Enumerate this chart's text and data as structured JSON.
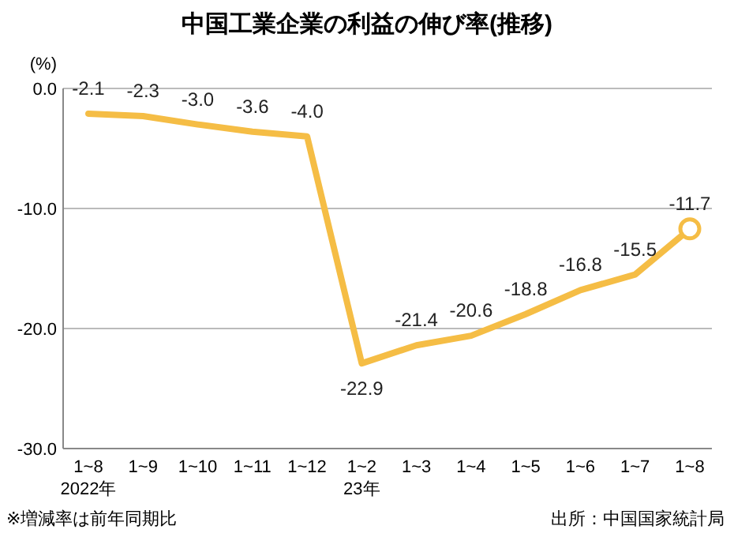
{
  "chart_data": {
    "type": "line",
    "title": "中国工業企業の利益の伸び率(推移)",
    "ylabel": "(%)",
    "categories": [
      "1~8\n2022年",
      "1~9",
      "1~10",
      "1~11",
      "1~12",
      "1~2\n23年",
      "1~3",
      "1~4",
      "1~5",
      "1~6",
      "1~7",
      "1~8"
    ],
    "series": [
      {
        "color": "#f5bd45",
        "values": [
          -2.1,
          -2.3,
          -3.0,
          -3.6,
          -4.0,
          -22.9,
          -21.4,
          -20.6,
          -18.8,
          -16.8,
          -15.5,
          -11.7
        ],
        "value_labels": [
          "-2.1",
          "-2.3",
          "-3.0",
          "-3.6",
          "-4.0",
          "-22.9",
          "-21.4",
          "-20.6",
          "-18.8",
          "-16.8",
          "-15.5",
          "-11.7"
        ],
        "marker": "none"
      },
      {
        "type": "scatter",
        "color": "#f5bd45",
        "values": [
          null,
          null,
          null,
          null,
          null,
          null,
          null,
          null,
          null,
          null,
          null,
          -11.7
        ],
        "marker": "circle"
      }
    ],
    "ylim": [
      -30,
      0
    ],
    "yticks": [
      {
        "value": 0,
        "label": "0.0"
      },
      {
        "value": -10,
        "label": "-10.0"
      },
      {
        "value": -20,
        "label": "-20.0"
      },
      {
        "value": -30,
        "label": "-30.0"
      }
    ],
    "grid": "y",
    "line_style": "solid",
    "annotations": [
      "※増減率は前年同期比",
      "出所：中国国家統計局"
    ]
  }
}
